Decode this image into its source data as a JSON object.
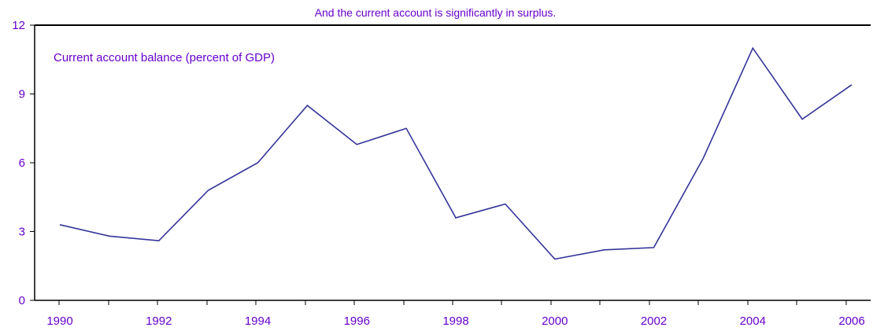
{
  "colors": {
    "text": "#6600cc",
    "line": "#333399",
    "axis": "#000000"
  },
  "chart_data": {
    "type": "line",
    "title": "And the current account is significantly in surplus.",
    "annotation": "Current account balance (percent of GDP)",
    "xlabel": "",
    "ylabel": "",
    "ylim": [
      0,
      12
    ],
    "yticks": [
      "0",
      "3",
      "6",
      "9",
      "12"
    ],
    "xlim": [
      1990,
      2006
    ],
    "xticks": [
      "1990",
      "1992",
      "1994",
      "1996",
      "1998",
      "2000",
      "2002",
      "2004",
      "2006"
    ],
    "grid": false,
    "series": [
      {
        "x": [
          1990,
          1991,
          1992,
          1993,
          1994,
          1995,
          1996,
          1997,
          1998,
          1999,
          2000,
          2001,
          2002,
          2003,
          2004,
          2005,
          2006
        ],
        "values": [
          3.3,
          2.8,
          2.6,
          4.8,
          6.0,
          8.5,
          6.8,
          7.5,
          3.6,
          4.2,
          1.8,
          2.2,
          2.3,
          6.2,
          11.0,
          7.9,
          9.4
        ]
      }
    ]
  }
}
